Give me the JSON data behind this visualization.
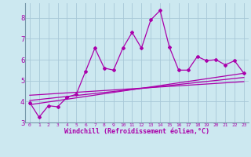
{
  "title": "",
  "xlabel": "Windchill (Refroidissement éolien,°C)",
  "ylabel": "",
  "bg_color": "#cce8f0",
  "grid_color": "#a8c8d8",
  "line_color": "#aa00aa",
  "xlim": [
    -0.5,
    23.5
  ],
  "ylim": [
    3.0,
    8.7
  ],
  "yticks": [
    3,
    4,
    5,
    6,
    7,
    8
  ],
  "xticks": [
    0,
    1,
    2,
    3,
    4,
    5,
    6,
    7,
    8,
    9,
    10,
    11,
    12,
    13,
    14,
    15,
    16,
    17,
    18,
    19,
    20,
    21,
    22,
    23
  ],
  "main_x": [
    0,
    1,
    2,
    3,
    4,
    5,
    6,
    7,
    8,
    9,
    10,
    11,
    12,
    13,
    14,
    15,
    16,
    17,
    18,
    19,
    20,
    21,
    22,
    23
  ],
  "main_y": [
    3.95,
    3.25,
    3.8,
    3.75,
    4.2,
    4.35,
    5.45,
    6.55,
    5.6,
    5.5,
    6.55,
    7.3,
    6.55,
    7.9,
    8.35,
    6.6,
    5.5,
    5.5,
    6.15,
    5.95,
    6.0,
    5.75,
    5.95,
    5.35
  ],
  "trend1_x": [
    0,
    23
  ],
  "trend1_y": [
    3.85,
    5.35
  ],
  "trend2_x": [
    0,
    23
  ],
  "trend2_y": [
    4.05,
    5.15
  ],
  "trend3_x": [
    0,
    23
  ],
  "trend3_y": [
    4.3,
    4.95
  ],
  "figsize": [
    3.2,
    2.0
  ],
  "dpi": 100
}
